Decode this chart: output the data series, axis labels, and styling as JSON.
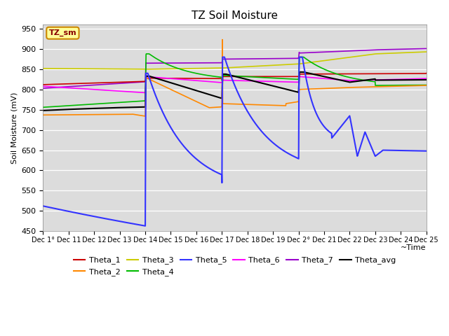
{
  "title": "TZ Soil Moisture",
  "xlabel": "~Time",
  "ylabel": "Soil Moisture (mV)",
  "ylim": [
    450,
    960
  ],
  "yticks": [
    450,
    500,
    550,
    600,
    650,
    700,
    750,
    800,
    850,
    900,
    950
  ],
  "x_labels": [
    "Dec 1°",
    "Dec 11",
    "Dec 12",
    "Dec 13",
    "Dec 14",
    "Dec 15",
    "Dec 16",
    "Dec 17",
    "Dec 18",
    "Dec 19",
    "Dec 2°",
    "Dec 21",
    "Dec 22",
    "Dec 23",
    "Dec 24",
    "Dec 25"
  ],
  "background_color": "#dcdcdc",
  "legend_box_color": "#ffff99",
  "legend_box_edge": "#cc8800",
  "colors": {
    "Theta_1": "#cc0000",
    "Theta_2": "#ff8800",
    "Theta_3": "#cccc00",
    "Theta_4": "#00bb00",
    "Theta_5": "#3333ff",
    "Theta_6": "#ff00ff",
    "Theta_7": "#9900cc",
    "Theta_avg": "#000000"
  }
}
